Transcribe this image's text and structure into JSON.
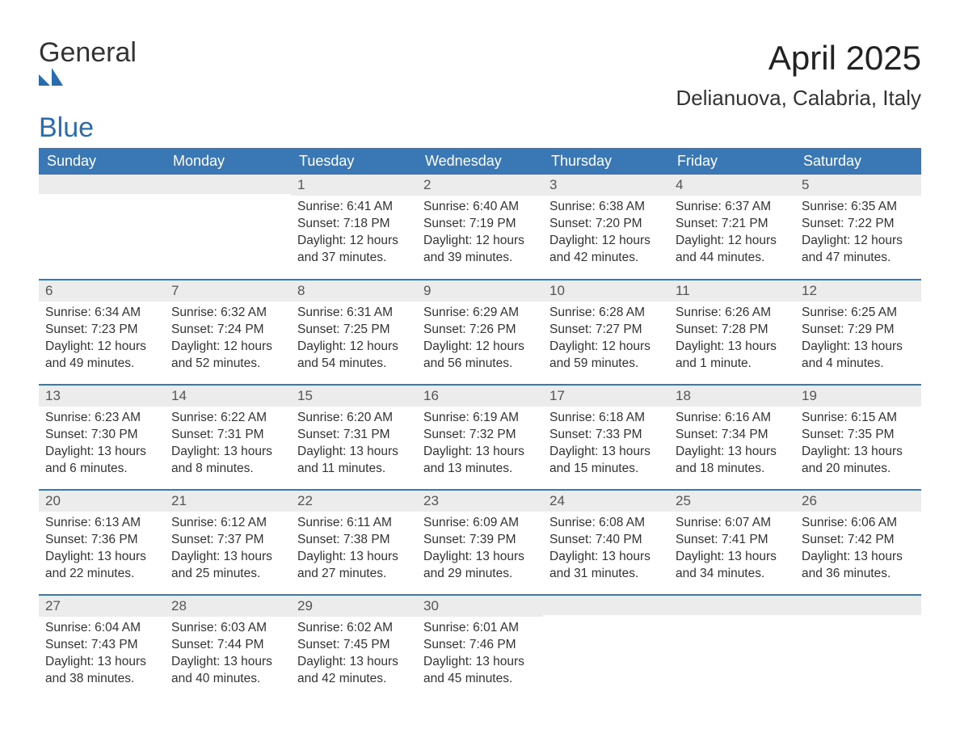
{
  "logo": {
    "line1": "General",
    "line2": "Blue",
    "mark_color": "#2a6cb0",
    "text_color_main": "#333333",
    "text_color_accent": "#2a6cb0"
  },
  "header": {
    "month_title": "April 2025",
    "location": "Delianuova, Calabria, Italy"
  },
  "colors": {
    "header_bg": "#3a78b5",
    "header_text": "#ffffff",
    "daybar_bg": "#ececec",
    "daybar_text": "#555555",
    "body_text": "#333333",
    "row_divider": "#3a78b5",
    "page_bg": "#ffffff"
  },
  "typography": {
    "month_title_fontsize": 42,
    "location_fontsize": 26,
    "weekday_fontsize": 18,
    "daynum_fontsize": 17,
    "body_fontsize": 15.5,
    "font_family": "Arial"
  },
  "weekdays": [
    "Sunday",
    "Monday",
    "Tuesday",
    "Wednesday",
    "Thursday",
    "Friday",
    "Saturday"
  ],
  "labels": {
    "sunrise_prefix": "Sunrise: ",
    "sunset_prefix": "Sunset: ",
    "daylight_prefix": "Daylight: "
  },
  "weeks": [
    [
      {
        "day": "",
        "sunrise": "",
        "sunset": "",
        "daylight": ""
      },
      {
        "day": "",
        "sunrise": "",
        "sunset": "",
        "daylight": ""
      },
      {
        "day": "1",
        "sunrise": "6:41 AM",
        "sunset": "7:18 PM",
        "daylight": "12 hours and 37 minutes."
      },
      {
        "day": "2",
        "sunrise": "6:40 AM",
        "sunset": "7:19 PM",
        "daylight": "12 hours and 39 minutes."
      },
      {
        "day": "3",
        "sunrise": "6:38 AM",
        "sunset": "7:20 PM",
        "daylight": "12 hours and 42 minutes."
      },
      {
        "day": "4",
        "sunrise": "6:37 AM",
        "sunset": "7:21 PM",
        "daylight": "12 hours and 44 minutes."
      },
      {
        "day": "5",
        "sunrise": "6:35 AM",
        "sunset": "7:22 PM",
        "daylight": "12 hours and 47 minutes."
      }
    ],
    [
      {
        "day": "6",
        "sunrise": "6:34 AM",
        "sunset": "7:23 PM",
        "daylight": "12 hours and 49 minutes."
      },
      {
        "day": "7",
        "sunrise": "6:32 AM",
        "sunset": "7:24 PM",
        "daylight": "12 hours and 52 minutes."
      },
      {
        "day": "8",
        "sunrise": "6:31 AM",
        "sunset": "7:25 PM",
        "daylight": "12 hours and 54 minutes."
      },
      {
        "day": "9",
        "sunrise": "6:29 AM",
        "sunset": "7:26 PM",
        "daylight": "12 hours and 56 minutes."
      },
      {
        "day": "10",
        "sunrise": "6:28 AM",
        "sunset": "7:27 PM",
        "daylight": "12 hours and 59 minutes."
      },
      {
        "day": "11",
        "sunrise": "6:26 AM",
        "sunset": "7:28 PM",
        "daylight": "13 hours and 1 minute."
      },
      {
        "day": "12",
        "sunrise": "6:25 AM",
        "sunset": "7:29 PM",
        "daylight": "13 hours and 4 minutes."
      }
    ],
    [
      {
        "day": "13",
        "sunrise": "6:23 AM",
        "sunset": "7:30 PM",
        "daylight": "13 hours and 6 minutes."
      },
      {
        "day": "14",
        "sunrise": "6:22 AM",
        "sunset": "7:31 PM",
        "daylight": "13 hours and 8 minutes."
      },
      {
        "day": "15",
        "sunrise": "6:20 AM",
        "sunset": "7:31 PM",
        "daylight": "13 hours and 11 minutes."
      },
      {
        "day": "16",
        "sunrise": "6:19 AM",
        "sunset": "7:32 PM",
        "daylight": "13 hours and 13 minutes."
      },
      {
        "day": "17",
        "sunrise": "6:18 AM",
        "sunset": "7:33 PM",
        "daylight": "13 hours and 15 minutes."
      },
      {
        "day": "18",
        "sunrise": "6:16 AM",
        "sunset": "7:34 PM",
        "daylight": "13 hours and 18 minutes."
      },
      {
        "day": "19",
        "sunrise": "6:15 AM",
        "sunset": "7:35 PM",
        "daylight": "13 hours and 20 minutes."
      }
    ],
    [
      {
        "day": "20",
        "sunrise": "6:13 AM",
        "sunset": "7:36 PM",
        "daylight": "13 hours and 22 minutes."
      },
      {
        "day": "21",
        "sunrise": "6:12 AM",
        "sunset": "7:37 PM",
        "daylight": "13 hours and 25 minutes."
      },
      {
        "day": "22",
        "sunrise": "6:11 AM",
        "sunset": "7:38 PM",
        "daylight": "13 hours and 27 minutes."
      },
      {
        "day": "23",
        "sunrise": "6:09 AM",
        "sunset": "7:39 PM",
        "daylight": "13 hours and 29 minutes."
      },
      {
        "day": "24",
        "sunrise": "6:08 AM",
        "sunset": "7:40 PM",
        "daylight": "13 hours and 31 minutes."
      },
      {
        "day": "25",
        "sunrise": "6:07 AM",
        "sunset": "7:41 PM",
        "daylight": "13 hours and 34 minutes."
      },
      {
        "day": "26",
        "sunrise": "6:06 AM",
        "sunset": "7:42 PM",
        "daylight": "13 hours and 36 minutes."
      }
    ],
    [
      {
        "day": "27",
        "sunrise": "6:04 AM",
        "sunset": "7:43 PM",
        "daylight": "13 hours and 38 minutes."
      },
      {
        "day": "28",
        "sunrise": "6:03 AM",
        "sunset": "7:44 PM",
        "daylight": "13 hours and 40 minutes."
      },
      {
        "day": "29",
        "sunrise": "6:02 AM",
        "sunset": "7:45 PM",
        "daylight": "13 hours and 42 minutes."
      },
      {
        "day": "30",
        "sunrise": "6:01 AM",
        "sunset": "7:46 PM",
        "daylight": "13 hours and 45 minutes."
      },
      {
        "day": "",
        "sunrise": "",
        "sunset": "",
        "daylight": ""
      },
      {
        "day": "",
        "sunrise": "",
        "sunset": "",
        "daylight": ""
      },
      {
        "day": "",
        "sunrise": "",
        "sunset": "",
        "daylight": ""
      }
    ]
  ]
}
